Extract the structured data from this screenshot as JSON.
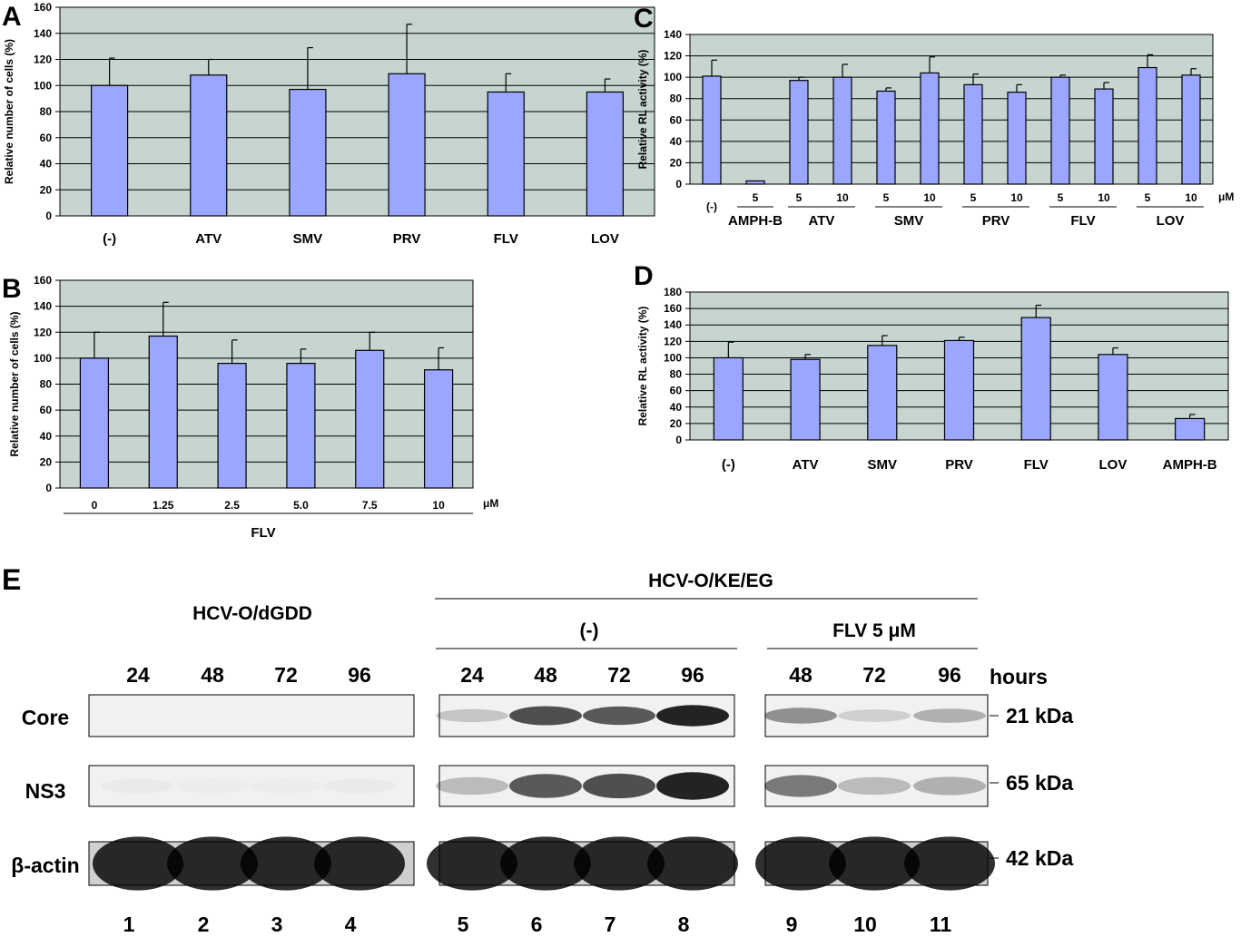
{
  "chart_data": [
    {
      "panel": "A",
      "type": "bar",
      "ylabel": "Relative number of cells (%)",
      "ylim": [
        0,
        160
      ],
      "ytick_step": 20,
      "categories": [
        "(-)",
        "ATV",
        "SMV",
        "PRV",
        "FLV",
        "LOV"
      ],
      "values": [
        100,
        108,
        97,
        109,
        95,
        95
      ],
      "errors": [
        21,
        12,
        32,
        38,
        14,
        10
      ]
    },
    {
      "panel": "B",
      "type": "bar",
      "ylabel": "Relative number of cells (%)",
      "ylim": [
        0,
        160
      ],
      "ytick_step": 20,
      "categories": [
        "0",
        "1.25",
        "2.5",
        "5.0",
        "7.5",
        "10"
      ],
      "values": [
        100,
        117,
        96,
        96,
        106,
        91
      ],
      "errors": [
        20,
        26,
        18,
        11,
        14,
        17
      ],
      "unit": "μM",
      "group_label": "FLV"
    },
    {
      "panel": "C",
      "type": "bar",
      "ylabel": "Relative RL activity (%)",
      "ylim": [
        0,
        140
      ],
      "ytick_step": 20,
      "x": [
        0,
        1,
        2,
        3,
        4,
        5,
        6,
        7,
        8,
        9,
        10,
        11
      ],
      "values": [
        101,
        3,
        97,
        100,
        87,
        104,
        93,
        86,
        100,
        89,
        109,
        102
      ],
      "errors": [
        15,
        0,
        3,
        12,
        3,
        15,
        10,
        7,
        2,
        6,
        12,
        6
      ],
      "dose_labels": [
        "(-)",
        "5",
        "5",
        "10",
        "5",
        "10",
        "5",
        "10",
        "5",
        "10",
        "5",
        "10"
      ],
      "groups": [
        "AMPH-B",
        "ATV",
        "SMV",
        "PRV",
        "FLV",
        "LOV"
      ],
      "unit": "μM"
    },
    {
      "panel": "D",
      "type": "bar",
      "ylabel": "Relative RL activity (%)",
      "ylim": [
        0,
        180
      ],
      "ytick_step": 20,
      "categories": [
        "(-)",
        "ATV",
        "SMV",
        "PRV",
        "FLV",
        "LOV",
        "AMPH-B"
      ],
      "values": [
        100,
        98,
        115,
        121,
        149,
        104,
        26
      ],
      "errors": [
        19,
        6,
        12,
        4,
        15,
        8,
        5
      ]
    }
  ],
  "blot": {
    "panel": "E",
    "title_left": "HCV-O/dGDD",
    "title_right": "HCV-O/KE/EG",
    "sub_minus": "(-)",
    "sub_flv": "FLV 5 μM",
    "hours_label": "hours",
    "hours_left": [
      "24",
      "48",
      "72",
      "96"
    ],
    "hours_mid": [
      "24",
      "48",
      "72",
      "96"
    ],
    "hours_right": [
      "48",
      "72",
      "96"
    ],
    "rows": [
      "Core",
      "NS3",
      "β-actin"
    ],
    "markers": [
      "21 kDa",
      "65 kDa",
      "42 kDa"
    ],
    "lanes": [
      "1",
      "2",
      "3",
      "4",
      "5",
      "6",
      "7",
      "8",
      "9",
      "10",
      "11"
    ],
    "core_intensity": [
      0,
      0,
      0,
      0,
      0.2,
      0.75,
      0.7,
      0.95,
      0.45,
      0.15,
      0.3
    ],
    "ns3_intensity": [
      0.03,
      0.02,
      0.02,
      0.03,
      0.25,
      0.7,
      0.75,
      0.95,
      0.55,
      0.25,
      0.3
    ],
    "actin_intensity": [
      0.9,
      0.9,
      0.9,
      0.9,
      0.9,
      0.9,
      0.9,
      0.9,
      0.9,
      0.9,
      0.9
    ]
  }
}
